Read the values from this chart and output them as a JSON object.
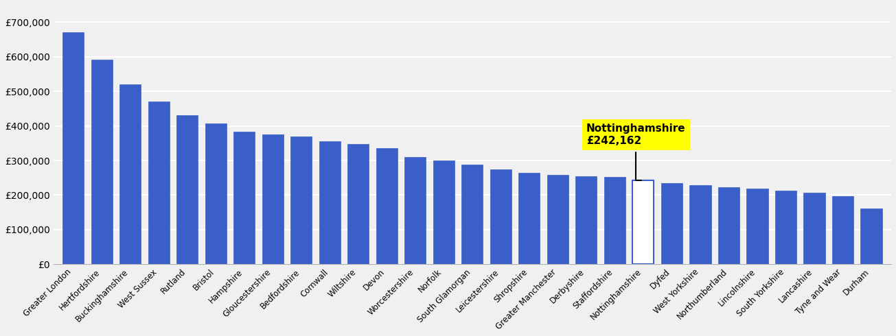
{
  "categories": [
    "Greater London",
    "Hertfordshire",
    "Buckinghamshire",
    "West Sussex",
    "Rutland",
    "Bristol",
    "Hampshire",
    "Gloucestershire",
    "Bedfordshire",
    "Cornwall",
    "Wiltshire",
    "Devon",
    "Worcestershire",
    "Norfolk",
    "South Glamorgan",
    "Leicestershire",
    "Shropshire",
    "Greater Manchester",
    "Derbyshire",
    "Staffordshire",
    "Nottinghamshire",
    "Dyfed",
    "West Yorkshire",
    "Northumberland",
    "Lincolnshire",
    "South Yorkshire",
    "Lancashire",
    "Tyne and Wear",
    "Durham"
  ],
  "values": [
    670000,
    592000,
    520000,
    471000,
    430000,
    408000,
    383000,
    375000,
    370000,
    356000,
    348000,
    335000,
    310000,
    300000,
    288000,
    275000,
    265000,
    258000,
    255000,
    252000,
    242162,
    235000,
    228000,
    222000,
    218000,
    213000,
    207000,
    197000,
    162000
  ],
  "highlight_index": 20,
  "highlight_label": "Nottinghamshire\n£242,162",
  "bar_color": "#3a5fc8",
  "highlight_bar_color": "#ffffff",
  "highlight_bar_edge": "#3a5fc8",
  "annotation_bg": "#ffff00",
  "ylim": [
    0,
    750000
  ],
  "yticks": [
    0,
    100000,
    200000,
    300000,
    400000,
    500000,
    600000,
    700000
  ],
  "ytick_labels": [
    "£0",
    "£100,000",
    "£200,000",
    "£300,000",
    "£400,000",
    "£500,000",
    "£600,000",
    "£700,000"
  ],
  "background_color": "#f0f0f0",
  "grid_color": "#ffffff"
}
